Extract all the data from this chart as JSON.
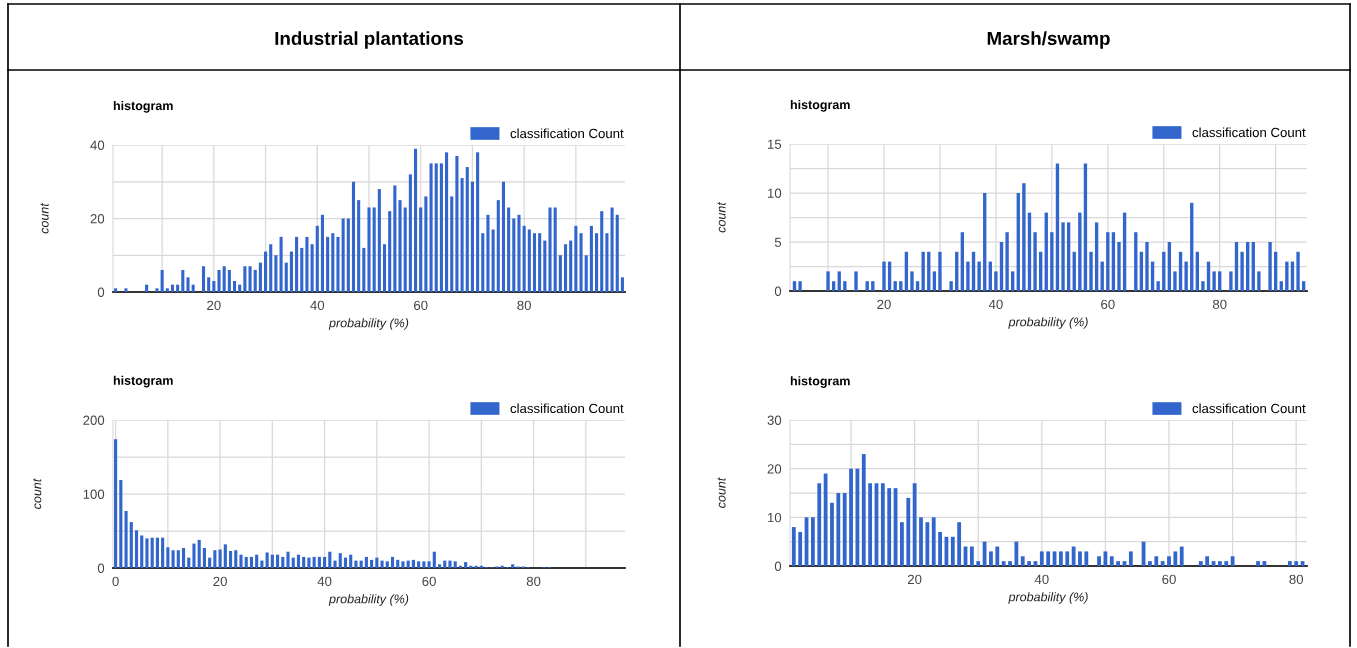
{
  "chart_data": [
    {
      "type": "histogram",
      "title": "histogram",
      "xlabel": "probability (%)",
      "ylabel": "count",
      "annotations": [
        "Industrial plantations"
      ],
      "legend": "top right",
      "grid": true,
      "bins": [
        0.5,
        1.5,
        2.5,
        3.5,
        4.5,
        5.5,
        6.5,
        7.5,
        8.5,
        9.5,
        10.5,
        11.5,
        12.5,
        13.5,
        14.5,
        15.5,
        16.5,
        17.5,
        18.5,
        19.5,
        20.5,
        21.5,
        22.5,
        23.5,
        24.5,
        25.5,
        26.5,
        27.5,
        28.5,
        29.5,
        30.5,
        31.5,
        32.5,
        33.5,
        34.5,
        35.5,
        36.5,
        37.5,
        38.5,
        39.5,
        40.5,
        41.5,
        42.5,
        43.5,
        44.5,
        45.5,
        46.5,
        47.5,
        48.5,
        49.5,
        50.5,
        51.5,
        52.5,
        53.5,
        54.5,
        55.5,
        56.5,
        57.5,
        58.5,
        59.5,
        60.5,
        61.5,
        62.5,
        63.5,
        64.5,
        65.5,
        66.5,
        67.5,
        68.5,
        69.5,
        70.5,
        71.5,
        72.5,
        73.5,
        74.5,
        75.5,
        76.5,
        77.5,
        78.5,
        79.5,
        80.5,
        81.5,
        82.5,
        83.5,
        84.5,
        85.5,
        86.5,
        87.5,
        88.5,
        89.5,
        90.5,
        91.5,
        92.5,
        93.5,
        94.5,
        95.5,
        96.5,
        97.5,
        98.5,
        99.5
      ],
      "series": [
        {
          "name": "classification Count",
          "color": "#3366cc",
          "values": [
            1,
            0,
            1,
            0,
            0,
            0,
            2,
            0,
            1,
            6,
            1,
            2,
            2,
            6,
            4,
            2,
            0,
            7,
            4,
            3,
            6,
            7,
            6,
            3,
            2,
            7,
            7,
            6,
            8,
            11,
            13,
            10,
            15,
            8,
            11,
            15,
            12,
            15,
            13,
            18,
            21,
            15,
            16,
            15,
            20,
            20,
            30,
            25,
            12,
            23,
            23,
            28,
            13,
            22,
            29,
            25,
            23,
            32,
            39,
            23,
            26,
            35,
            35,
            35,
            38,
            26,
            37,
            31,
            34,
            30,
            38,
            16,
            21,
            17,
            25,
            30,
            23,
            20,
            21,
            18,
            17,
            16,
            16,
            14,
            23,
            23,
            10,
            13,
            14,
            18,
            16,
            10,
            18,
            16,
            22,
            16,
            23,
            21,
            4
          ]
        }
      ],
      "xlim": [
        0.5,
        99.5
      ],
      "ylim": [
        0,
        40
      ],
      "xticks": [
        {
          "value": 10,
          "label": null
        },
        20,
        {
          "value": 30,
          "label": null
        },
        40,
        {
          "value": 50,
          "label": null
        },
        60,
        {
          "value": 70,
          "label": null
        },
        80,
        {
          "value": 90,
          "label": null
        }
      ],
      "yticks": [
        0,
        {
          "value": 10,
          "label": null
        },
        20,
        {
          "value": 30,
          "label": null
        },
        40
      ]
    },
    {
      "type": "histogram",
      "title": "histogram",
      "xlabel": "probability (%)",
      "ylabel": "count",
      "annotations": [
        "Marsh/swamp"
      ],
      "legend": "top right",
      "grid": true,
      "bins": [
        3.5,
        4.5,
        5.5,
        6.5,
        7.5,
        8.5,
        9.5,
        10.5,
        11.5,
        12.5,
        13.5,
        14.5,
        15.5,
        16.5,
        17.5,
        18.5,
        19.5,
        20.5,
        21.5,
        22.5,
        23.5,
        24.5,
        25.5,
        26.5,
        27.5,
        28.5,
        29.5,
        30.5,
        31.5,
        32.5,
        33.5,
        34.5,
        35.5,
        36.5,
        37.5,
        38.5,
        39.5,
        40.5,
        41.5,
        42.5,
        43.5,
        44.5,
        45.5,
        46.5,
        47.5,
        48.5,
        49.5,
        50.5,
        51.5,
        52.5,
        53.5,
        54.5,
        55.5,
        56.5,
        57.5,
        58.5,
        59.5,
        60.5,
        61.5,
        62.5,
        63.5,
        64.5,
        65.5,
        66.5,
        67.5,
        68.5,
        69.5,
        70.5,
        71.5,
        72.5,
        73.5,
        74.5,
        75.5,
        76.5,
        77.5,
        78.5,
        79.5,
        80.5,
        81.5,
        82.5,
        83.5,
        84.5,
        85.5,
        86.5,
        87.5,
        88.5,
        89.5,
        90.5,
        91.5,
        92.5,
        93.5,
        94.5,
        95.5
      ],
      "series": [
        {
          "name": "classification Count",
          "color": "#3366cc",
          "values": [
            1,
            1,
            0,
            0,
            0,
            0,
            2,
            1,
            2,
            1,
            0,
            2,
            0,
            1,
            1,
            0,
            3,
            3,
            1,
            1,
            4,
            2,
            1,
            4,
            4,
            2,
            4,
            0,
            1,
            4,
            6,
            3,
            4,
            3,
            10,
            3,
            2,
            5,
            6,
            2,
            10,
            11,
            8,
            6,
            4,
            8,
            6,
            13,
            7,
            7,
            4,
            8,
            13,
            4,
            7,
            3,
            6,
            6,
            5,
            8,
            0,
            6,
            4,
            5,
            3,
            1,
            4,
            5,
            2,
            4,
            3,
            9,
            4,
            1,
            3,
            2,
            2,
            0,
            2,
            5,
            4,
            5,
            5,
            2,
            0,
            5,
            4,
            1,
            3,
            3,
            4,
            1
          ]
        }
      ],
      "xlim": [
        3.2,
        95.6
      ],
      "ylim": [
        0,
        15
      ],
      "xticks": [
        {
          "value": 10,
          "label": null
        },
        20,
        {
          "value": 30,
          "label": null
        },
        40,
        {
          "value": 50,
          "label": null
        },
        60,
        {
          "value": 70,
          "label": null
        },
        80,
        {
          "value": 90,
          "label": null
        }
      ],
      "yticks": [
        0,
        {
          "value": 2.5,
          "label": null
        },
        5,
        {
          "value": 7.5,
          "label": null
        },
        10,
        {
          "value": 12.5,
          "label": null
        },
        15
      ]
    },
    {
      "type": "histogram",
      "title": "histogram",
      "xlabel": "probability (%)",
      "ylabel": "count",
      "legend": "top right",
      "grid": true,
      "bins": [
        -0.5,
        0.5,
        1.5,
        2.5,
        3.5,
        4.5,
        5.5,
        6.5,
        7.5,
        8.5,
        9.5,
        10.5,
        11.5,
        12.5,
        13.5,
        14.5,
        15.5,
        16.5,
        17.5,
        18.5,
        19.5,
        20.5,
        21.5,
        22.5,
        23.5,
        24.5,
        25.5,
        26.5,
        27.5,
        28.5,
        29.5,
        30.5,
        31.5,
        32.5,
        33.5,
        34.5,
        35.5,
        36.5,
        37.5,
        38.5,
        39.5,
        40.5,
        41.5,
        42.5,
        43.5,
        44.5,
        45.5,
        46.5,
        47.5,
        48.5,
        49.5,
        50.5,
        51.5,
        52.5,
        53.5,
        54.5,
        55.5,
        56.5,
        57.5,
        58.5,
        59.5,
        60.5,
        61.5,
        62.5,
        63.5,
        64.5,
        65.5,
        66.5,
        67.5,
        68.5,
        69.5,
        70.5,
        71.5,
        72.5,
        73.5,
        74.5,
        75.5,
        76.5,
        77.5,
        78.5,
        79.5,
        80.5,
        81.5,
        82.5,
        83.5,
        84.5,
        85.5,
        86.5,
        87.5,
        88.5,
        89.5,
        90.5,
        91.5,
        92.5,
        93.5,
        94.5,
        95.5,
        96.5,
        97.5
      ],
      "series": [
        {
          "name": "classification Count",
          "color": "#3366cc",
          "values": [
            174,
            119,
            77,
            62,
            51,
            44,
            40,
            41,
            41,
            41,
            28,
            24,
            24,
            27,
            14,
            33,
            38,
            27,
            14,
            24,
            25,
            32,
            23,
            24,
            18,
            15,
            15,
            18,
            10,
            21,
            18,
            18,
            15,
            22,
            14,
            18,
            15,
            14,
            15,
            15,
            15,
            22,
            10,
            20,
            14,
            18,
            10,
            10,
            15,
            11,
            14,
            10,
            9,
            15,
            11,
            9,
            10,
            11,
            9,
            9,
            9,
            22,
            5,
            10,
            10,
            9,
            3,
            8,
            3,
            3,
            3,
            1,
            1,
            2,
            3,
            1,
            5,
            2,
            2,
            1,
            0,
            0,
            1,
            1,
            0,
            0,
            0,
            0,
            0,
            0,
            0,
            0,
            0,
            0,
            0,
            0,
            0,
            0
          ]
        }
      ],
      "xlim": [
        -0.5,
        97.5
      ],
      "ylim": [
        0,
        200
      ],
      "xticks": [
        0,
        {
          "value": 10,
          "label": null
        },
        20,
        {
          "value": 30,
          "label": null
        },
        40,
        {
          "value": 50,
          "label": null
        },
        60,
        {
          "value": 70,
          "label": null
        },
        80,
        {
          "value": 90,
          "label": null
        }
      ],
      "yticks": [
        0,
        {
          "value": 50,
          "label": null
        },
        100,
        {
          "value": 150,
          "label": null
        },
        200
      ]
    },
    {
      "type": "histogram",
      "title": "histogram",
      "xlabel": "probability (%)",
      "ylabel": "count",
      "legend": "top right",
      "grid": true,
      "bins": [
        0.5,
        1.5,
        2.5,
        3.5,
        4.5,
        5.5,
        6.5,
        7.5,
        8.5,
        9.5,
        10.5,
        11.5,
        12.5,
        13.5,
        14.5,
        15.5,
        16.5,
        17.5,
        18.5,
        19.5,
        20.5,
        21.5,
        22.5,
        23.5,
        24.5,
        25.5,
        26.5,
        27.5,
        28.5,
        29.5,
        30.5,
        31.5,
        32.5,
        33.5,
        34.5,
        35.5,
        36.5,
        37.5,
        38.5,
        39.5,
        40.5,
        41.5,
        42.5,
        43.5,
        44.5,
        45.5,
        46.5,
        47.5,
        48.5,
        49.5,
        50.5,
        51.5,
        52.5,
        53.5,
        54.5,
        55.5,
        56.5,
        57.5,
        58.5,
        59.5,
        60.5,
        61.5,
        62.5,
        63.5,
        64.5,
        65.5,
        66.5,
        67.5,
        68.5,
        69.5,
        70.5,
        71.5,
        72.5,
        73.5,
        74.5,
        75.5,
        76.5,
        77.5,
        78.5,
        79.5,
        80.5,
        81.5
      ],
      "series": [
        {
          "name": "classification Count",
          "color": "#3366cc",
          "values": [
            8,
            7,
            10,
            10,
            17,
            19,
            13,
            15,
            15,
            20,
            20,
            23,
            17,
            17,
            17,
            16,
            16,
            9,
            14,
            17,
            10,
            9,
            10,
            7,
            6,
            6,
            9,
            4,
            4,
            1,
            5,
            3,
            4,
            1,
            1,
            5,
            2,
            1,
            1,
            3,
            3,
            3,
            3,
            3,
            4,
            3,
            3,
            0,
            2,
            3,
            2,
            1,
            1,
            3,
            0,
            5,
            1,
            2,
            1,
            2,
            3,
            4,
            0,
            0,
            1,
            2,
            1,
            1,
            1,
            2,
            0,
            0,
            0,
            1,
            1,
            0,
            0,
            0,
            1,
            1,
            1
          ]
        }
      ],
      "xlim": [
        0.4,
        81.7
      ],
      "ylim": [
        0,
        30
      ],
      "xticks": [
        {
          "value": 10,
          "label": null
        },
        20,
        {
          "value": 30,
          "label": null
        },
        40,
        {
          "value": 50,
          "label": null
        },
        60,
        {
          "value": 70,
          "label": null
        },
        80
      ],
      "yticks": [
        0,
        {
          "value": 5,
          "label": null
        },
        10,
        {
          "value": 15,
          "label": null
        },
        20,
        {
          "value": 25,
          "label": null
        },
        30
      ]
    }
  ]
}
